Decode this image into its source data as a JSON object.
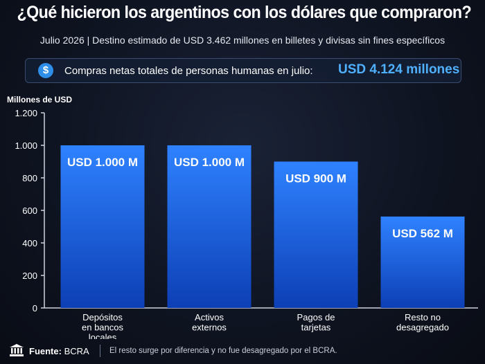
{
  "header": {
    "title": "¿Qué hicieron los argentinos con los dólares que compraron?",
    "subtitle": "Julio 2026 | Destino estimado de USD 3.462 millones en billetes y divisas sin fines específicos"
  },
  "callout": {
    "icon": "dollar-coin-icon",
    "text": "Compras netas totales de personas humanas en julio:",
    "value": "USD 4.124 millones"
  },
  "footer": {
    "source_label": "Fuente:",
    "source": "BCRA",
    "note": "El resto surge por diferencia y no fue desagregado por el BCRA.",
    "icon": "bank-icon"
  },
  "colors": {
    "bar_top": "#2f82ff",
    "bar_bottom": "#0d3fb5",
    "accent": "#4fb0ff"
  },
  "chart_data": {
    "type": "bar",
    "title": "¿Qué hicieron los argentinos con los dólares que compraron?",
    "ylabel": "Millones de USD",
    "xlabel": "",
    "ylim": [
      0,
      1200
    ],
    "yticks": [
      0,
      200,
      400,
      600,
      800,
      1000,
      1200
    ],
    "ytick_labels": [
      "0",
      "200",
      "400",
      "600",
      "800",
      "1.000",
      "1.200"
    ],
    "grid": false,
    "categories": [
      [
        "Depósitos",
        "en bancos",
        "locales"
      ],
      [
        "Activos",
        "externos"
      ],
      [
        "Pagos de",
        "tarjetas"
      ],
      [
        "Resto no",
        "desagregado"
      ]
    ],
    "values": [
      1000,
      1000,
      900,
      562
    ],
    "data_labels": [
      "USD 1.000 M",
      "USD 1.000 M",
      "USD 900 M",
      "USD 562 M"
    ]
  }
}
